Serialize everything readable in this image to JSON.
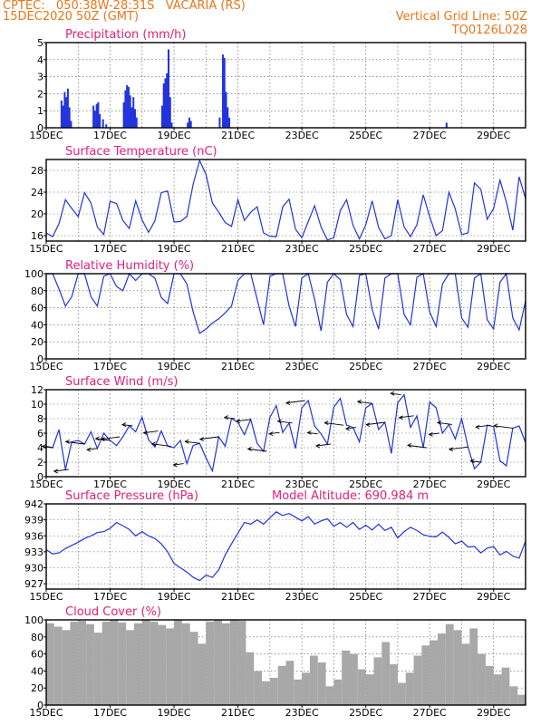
{
  "header": {
    "line1": "CPTEC:   050:38W-28:31S   VACARIA (RS)",
    "line2": "15DEC2020 50Z (GMT)",
    "grid_note": "Vertical Grid Line: 50Z",
    "code": "TQ0126L028"
  },
  "colors": {
    "series": "#2233dd",
    "title": "#e0207a",
    "header": "#e8761a",
    "cloud": "#a8a8a8"
  },
  "date_labels": [
    "15DEC",
    "17DEC",
    "19DEC",
    "21DEC",
    "23DEC",
    "25DEC",
    "27DEC",
    "29DEC"
  ],
  "chart_data": [
    {
      "id": "precip",
      "type": "bar",
      "title": "Precipitation (mm/h)",
      "ylim": [
        0,
        5
      ],
      "yticks": [
        "0",
        "1",
        "2",
        "3",
        "4",
        "5"
      ],
      "grid": true,
      "x_range_days": [
        15,
        30
      ],
      "x_days": [
        15.45,
        15.5,
        15.55,
        15.6,
        15.65,
        15.7,
        15.75,
        16.45,
        16.5,
        16.55,
        16.6,
        16.65,
        16.75,
        16.85,
        17.4,
        17.45,
        17.5,
        17.55,
        17.6,
        17.65,
        17.7,
        17.75,
        17.8,
        18.6,
        18.65,
        18.7,
        18.75,
        18.8,
        18.85,
        18.9,
        19.4,
        19.45,
        19.5,
        20.4,
        20.5,
        20.55,
        20.6,
        20.65,
        20.7,
        27.5
      ],
      "values": [
        1.6,
        1.3,
        2.1,
        1.8,
        2.3,
        1.2,
        0.4,
        1.3,
        1.0,
        1.4,
        1.5,
        0.8,
        0.5,
        0.2,
        1.5,
        2.2,
        2.5,
        2.4,
        1.9,
        1.2,
        1.8,
        1.1,
        0.6,
        1.3,
        2.6,
        2.9,
        3.2,
        4.6,
        1.8,
        0.3,
        0.3,
        0.6,
        0.4,
        0.6,
        4.3,
        4.1,
        2.1,
        1.2,
        0.6,
        0.3
      ]
    },
    {
      "id": "temp",
      "type": "line",
      "title": "Surface Temperature (nC)",
      "ylim": [
        15,
        30
      ],
      "yticks": [
        "16",
        "20",
        "24",
        "28"
      ],
      "grid": true,
      "x_range_days": [
        15,
        30
      ],
      "x_days": [
        15.0,
        15.2,
        15.4,
        15.6,
        15.8,
        16.0,
        16.2,
        16.4,
        16.6,
        16.8,
        17.0,
        17.2,
        17.4,
        17.6,
        17.8,
        18.0,
        18.2,
        18.4,
        18.6,
        18.8,
        19.0,
        19.2,
        19.4,
        19.6,
        19.8,
        20.0,
        20.2,
        20.4,
        20.6,
        20.8,
        21.0,
        21.2,
        21.4,
        21.6,
        21.8,
        22.0,
        22.2,
        22.4,
        22.6,
        22.8,
        23.0,
        23.2,
        23.4,
        23.6,
        23.8,
        24.0,
        24.2,
        24.4,
        24.6,
        24.8,
        25.0,
        25.2,
        25.4,
        25.6,
        25.8,
        26.0,
        26.2,
        26.4,
        26.6,
        26.8,
        27.0,
        27.2,
        27.4,
        27.6,
        27.8,
        28.0,
        28.2,
        28.4,
        28.6,
        28.8,
        29.0,
        29.2,
        29.4,
        29.6,
        29.8,
        30.0
      ],
      "values": [
        16.5,
        15.8,
        18.2,
        22.6,
        21.0,
        19.5,
        23.9,
        22.0,
        17.6,
        16.2,
        22.3,
        21.9,
        18.8,
        17.3,
        22.4,
        18.9,
        16.6,
        18.7,
        23.9,
        24.2,
        18.5,
        18.6,
        19.5,
        25.5,
        29.8,
        27.3,
        22.0,
        20.3,
        18.4,
        17.7,
        22.6,
        18.8,
        20.3,
        21.3,
        16.5,
        15.9,
        15.8,
        21.3,
        22.7,
        17.2,
        15.6,
        18.6,
        21.5,
        17.6,
        15.2,
        15.6,
        20.6,
        22.6,
        17.9,
        15.4,
        18.0,
        22.4,
        17.5,
        15.4,
        16.0,
        22.6,
        17.6,
        15.8,
        18.0,
        23.5,
        19.5,
        16.0,
        16.9,
        24.0,
        20.9,
        16.2,
        16.5,
        25.7,
        24.5,
        19.0,
        21.0,
        26.2,
        22.2,
        17.0,
        26.8,
        22.8
      ]
    },
    {
      "id": "rh",
      "type": "line",
      "title": "Relative Humidity (%)",
      "ylim": [
        0,
        100
      ],
      "yticks": [
        "0",
        "20",
        "40",
        "60",
        "80",
        "100"
      ],
      "grid": true,
      "x_range_days": [
        15,
        30
      ],
      "x_days": [
        15.0,
        15.2,
        15.4,
        15.6,
        15.8,
        16.0,
        16.2,
        16.4,
        16.6,
        16.8,
        17.0,
        17.2,
        17.4,
        17.6,
        17.8,
        18.0,
        18.2,
        18.4,
        18.6,
        18.8,
        19.0,
        19.2,
        19.4,
        19.6,
        19.8,
        20.0,
        20.2,
        20.4,
        20.6,
        20.8,
        21.0,
        21.2,
        21.4,
        21.6,
        21.8,
        22.0,
        22.2,
        22.4,
        22.6,
        22.8,
        23.0,
        23.2,
        23.4,
        23.6,
        23.8,
        24.0,
        24.2,
        24.4,
        24.6,
        24.8,
        25.0,
        25.2,
        25.4,
        25.6,
        25.8,
        26.0,
        26.2,
        26.4,
        26.6,
        26.8,
        27.0,
        27.2,
        27.4,
        27.6,
        27.8,
        28.0,
        28.2,
        28.4,
        28.6,
        28.8,
        29.0,
        29.2,
        29.4,
        29.6,
        29.8,
        30.0
      ],
      "values": [
        100,
        100,
        82,
        62,
        73,
        100,
        100,
        73,
        62,
        97,
        100,
        85,
        80,
        100,
        92,
        100,
        100,
        95,
        72,
        65,
        100,
        100,
        88,
        55,
        30,
        35,
        42,
        47,
        54,
        62,
        92,
        100,
        100,
        70,
        40,
        97,
        100,
        100,
        62,
        38,
        95,
        100,
        70,
        33,
        90,
        100,
        93,
        52,
        38,
        98,
        100,
        58,
        35,
        95,
        100,
        100,
        52,
        40,
        96,
        100,
        55,
        38,
        88,
        100,
        100,
        48,
        37,
        95,
        100,
        46,
        35,
        90,
        100,
        48,
        34,
        68
      ]
    },
    {
      "id": "wind",
      "type": "line",
      "title": "Surface Wind (m/s)",
      "ylim": [
        0,
        12
      ],
      "yticks": [
        "0",
        "2",
        "4",
        "6",
        "8",
        "10",
        "12"
      ],
      "grid": true,
      "x_range_days": [
        15,
        30
      ],
      "x_days": [
        15.0,
        15.2,
        15.4,
        15.6,
        15.8,
        16.0,
        16.2,
        16.4,
        16.6,
        16.8,
        17.0,
        17.2,
        17.4,
        17.6,
        17.8,
        18.0,
        18.2,
        18.4,
        18.6,
        18.8,
        19.0,
        19.2,
        19.4,
        19.6,
        19.8,
        20.0,
        20.2,
        20.4,
        20.6,
        20.8,
        21.0,
        21.2,
        21.4,
        21.6,
        21.8,
        22.0,
        22.2,
        22.4,
        22.6,
        22.8,
        23.0,
        23.2,
        23.4,
        23.6,
        23.8,
        24.0,
        24.2,
        24.4,
        24.6,
        24.8,
        25.0,
        25.2,
        25.4,
        25.6,
        25.8,
        26.0,
        26.2,
        26.4,
        26.6,
        26.8,
        27.0,
        27.2,
        27.4,
        27.6,
        27.8,
        28.0,
        28.2,
        28.4,
        28.6,
        28.8,
        29.0,
        29.2,
        29.4,
        29.6,
        29.8,
        30.0
      ],
      "values": [
        4.2,
        4.0,
        6.5,
        1.0,
        4.8,
        5.0,
        4.5,
        6.2,
        3.9,
        6.0,
        5.0,
        4.3,
        5.5,
        7.0,
        6.2,
        8.2,
        5.1,
        4.1,
        6.3,
        4.2,
        4.0,
        5.0,
        1.8,
        4.3,
        4.6,
        2.6,
        0.8,
        5.5,
        4.2,
        8.0,
        7.5,
        5.8,
        7.9,
        4.6,
        3.5,
        8.2,
        9.8,
        6.1,
        7.4,
        3.9,
        9.5,
        10.5,
        7.0,
        5.9,
        4.5,
        9.6,
        10.8,
        7.1,
        6.8,
        4.8,
        9.5,
        10.1,
        6.5,
        7.5,
        3.2,
        10.2,
        11.3,
        6.8,
        8.4,
        4.0,
        10.3,
        9.5,
        6.0,
        7.2,
        5.2,
        8.0,
        4.1,
        1.1,
        2.0,
        7.1,
        6.9,
        2.2,
        1.5,
        6.7,
        7.0,
        4.7
      ],
      "arrows_days": [
        15.2,
        15.7,
        16.2,
        16.6,
        17.0,
        17.3,
        17.7,
        18.5,
        18.9,
        19.3,
        19.8,
        20.4,
        20.9,
        21.4,
        21.9,
        22.3,
        22.7,
        23.1,
        23.5,
        23.9,
        24.3,
        24.7,
        25.2,
        25.6,
        26.1,
        26.5,
        26.9,
        27.3,
        27.7,
        28.2,
        28.6,
        28.9,
        29.6
      ]
    },
    {
      "id": "pres",
      "type": "line",
      "title": "Surface Pressure (hPa)",
      "annotation": "Model Altitude: 690.984 m",
      "ylim": [
        926,
        942
      ],
      "yticks": [
        "927",
        "930",
        "933",
        "936",
        "939",
        "942"
      ],
      "grid": true,
      "x_range_days": [
        15,
        30
      ],
      "x_days": [
        15.0,
        15.2,
        15.4,
        15.6,
        15.8,
        16.0,
        16.2,
        16.4,
        16.6,
        16.8,
        17.0,
        17.2,
        17.4,
        17.6,
        17.8,
        18.0,
        18.2,
        18.4,
        18.6,
        18.8,
        19.0,
        19.2,
        19.4,
        19.6,
        19.8,
        20.0,
        20.2,
        20.4,
        20.6,
        20.8,
        21.0,
        21.2,
        21.4,
        21.6,
        21.8,
        22.0,
        22.2,
        22.4,
        22.6,
        22.8,
        23.0,
        23.2,
        23.4,
        23.6,
        23.8,
        24.0,
        24.2,
        24.4,
        24.6,
        24.8,
        25.0,
        25.2,
        25.4,
        25.6,
        25.8,
        26.0,
        26.2,
        26.4,
        26.6,
        26.8,
        27.0,
        27.2,
        27.4,
        27.6,
        27.8,
        28.0,
        28.2,
        28.4,
        28.6,
        28.8,
        29.0,
        29.2,
        29.4,
        29.6,
        29.8,
        30.0
      ],
      "values": [
        933.4,
        932.6,
        932.8,
        933.6,
        934.2,
        934.8,
        935.5,
        936.0,
        936.6,
        936.8,
        937.4,
        938.5,
        937.9,
        937.2,
        936.0,
        936.8,
        936.0,
        935.5,
        934.5,
        933.0,
        930.8,
        930.0,
        929.2,
        928.2,
        927.6,
        928.6,
        928.2,
        929.6,
        932.4,
        934.5,
        936.5,
        938.5,
        938.2,
        939.0,
        938.2,
        939.4,
        940.5,
        939.8,
        940.2,
        939.5,
        938.8,
        939.6,
        938.2,
        938.8,
        939.2,
        937.8,
        938.5,
        937.6,
        938.5,
        937.2,
        938.0,
        937.1,
        938.2,
        937.0,
        937.6,
        935.6,
        936.8,
        937.6,
        937.0,
        936.2,
        935.9,
        935.8,
        936.7,
        935.7,
        934.5,
        935.0,
        933.9,
        934.0,
        932.8,
        933.7,
        934.0,
        932.4,
        933.1,
        932.2,
        931.8,
        935.0
      ]
    },
    {
      "id": "cloud",
      "type": "bar",
      "title": "Cloud Cover (%)",
      "ylim": [
        0,
        100
      ],
      "yticks": [
        "0",
        "20",
        "40",
        "60",
        "80",
        "100"
      ],
      "grid": true,
      "x_range_days": [
        15,
        30
      ],
      "x_days": [
        15.0,
        15.25,
        15.5,
        15.75,
        16.0,
        16.25,
        16.5,
        16.75,
        17.0,
        17.25,
        17.5,
        17.75,
        18.0,
        18.25,
        18.5,
        18.75,
        19.0,
        19.25,
        19.5,
        19.75,
        20.0,
        20.25,
        20.5,
        20.75,
        21.0,
        21.25,
        21.5,
        21.75,
        22.0,
        22.25,
        22.5,
        22.75,
        23.0,
        23.25,
        23.5,
        23.75,
        24.0,
        24.25,
        24.5,
        24.75,
        25.0,
        25.25,
        25.5,
        25.75,
        26.0,
        26.25,
        26.5,
        26.75,
        27.0,
        27.25,
        27.5,
        27.75,
        28.0,
        28.25,
        28.5,
        28.75,
        29.0,
        29.25,
        29.5,
        29.75
      ],
      "values": [
        96,
        92,
        88,
        98,
        99,
        95,
        85,
        98,
        100,
        97,
        88,
        96,
        100,
        98,
        94,
        90,
        100,
        96,
        86,
        72,
        98,
        100,
        96,
        100,
        99,
        62,
        40,
        28,
        32,
        46,
        52,
        30,
        38,
        58,
        50,
        22,
        30,
        64,
        60,
        42,
        36,
        56,
        74,
        48,
        26,
        38,
        58,
        70,
        76,
        84,
        95,
        88,
        72,
        90,
        60,
        46,
        36,
        44,
        22,
        12
      ]
    }
  ]
}
